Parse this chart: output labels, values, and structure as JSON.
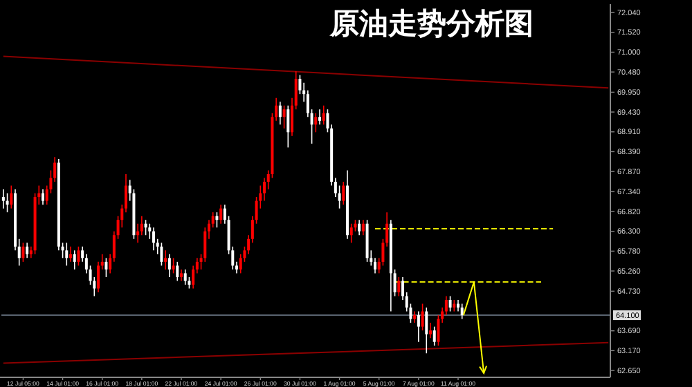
{
  "chart_data": {
    "type": "candlestick",
    "title": "原油走势分析图",
    "categories": [
      null,
      null,
      null,
      null,
      null,
      "12 Jul 05:00",
      null,
      null,
      null,
      null,
      null,
      null,
      null,
      null,
      null,
      "14 Jul 01:00",
      null,
      null,
      null,
      null,
      null,
      null,
      null,
      null,
      null,
      "16 Jul 01:00",
      null,
      null,
      null,
      null,
      null,
      null,
      null,
      null,
      null,
      "18 Jul 01:00",
      null,
      null,
      null,
      null,
      null,
      null,
      null,
      null,
      null,
      "22 Jul 01:00",
      null,
      null,
      null,
      null,
      null,
      null,
      null,
      null,
      null,
      "24 Jul 01:00",
      null,
      null,
      null,
      null,
      null,
      null,
      null,
      null,
      null,
      "26 Jul 01:00",
      null,
      null,
      null,
      null,
      null,
      null,
      null,
      null,
      null,
      "30 Jul 01:00",
      null,
      null,
      null,
      null,
      null,
      null,
      null,
      null,
      null,
      "1 Aug 01:00",
      null,
      null,
      null,
      null,
      null,
      null,
      null,
      null,
      null,
      "5 Aug 01:00",
      null,
      null,
      null,
      null,
      null,
      null,
      null,
      null,
      null,
      "7 Aug 01:00",
      null,
      null,
      null,
      null,
      null,
      null,
      null,
      null,
      null,
      "11 Aug 01:00",
      null,
      null,
      null,
      null,
      null,
      null,
      null,
      null,
      null,
      null,
      null,
      null,
      null,
      null,
      null,
      null,
      null,
      null,
      null,
      null,
      null,
      null,
      null,
      null,
      null,
      null,
      null,
      null,
      null,
      null,
      null,
      null,
      null,
      null,
      null,
      null,
      null,
      null
    ],
    "ohlc": [
      [
        67.2,
        67.4,
        66.9,
        67.1
      ],
      [
        67.1,
        67.3,
        66.8,
        67.0
      ],
      [
        67.0,
        67.5,
        66.9,
        67.3
      ],
      [
        67.3,
        67.4,
        65.8,
        65.9
      ],
      [
        65.9,
        66.1,
        65.4,
        65.6
      ],
      [
        65.6,
        66.0,
        65.5,
        65.9
      ],
      [
        65.9,
        66.0,
        65.6,
        65.7
      ],
      [
        65.7,
        65.9,
        65.6,
        65.8
      ],
      [
        65.8,
        67.3,
        65.7,
        67.2
      ],
      [
        67.2,
        67.5,
        67.0,
        67.3
      ],
      [
        67.3,
        67.4,
        67.0,
        67.1
      ],
      [
        67.1,
        67.5,
        67.0,
        67.4
      ],
      [
        67.4,
        67.9,
        67.3,
        67.7
      ],
      [
        67.7,
        68.25,
        67.6,
        68.1
      ],
      [
        68.1,
        68.2,
        65.8,
        65.9
      ],
      [
        65.9,
        66.0,
        65.6,
        65.8
      ],
      [
        65.8,
        66.0,
        65.4,
        65.6
      ],
      [
        65.6,
        65.9,
        65.5,
        65.7
      ],
      [
        65.7,
        65.8,
        65.3,
        65.5
      ],
      [
        65.5,
        65.9,
        65.4,
        65.8
      ],
      [
        65.8,
        65.9,
        65.5,
        65.6
      ],
      [
        65.6,
        65.7,
        65.2,
        65.3
      ],
      [
        65.3,
        65.4,
        64.9,
        65.0
      ],
      [
        65.0,
        65.1,
        64.6,
        64.8
      ],
      [
        64.8,
        65.5,
        64.7,
        65.4
      ],
      [
        65.4,
        65.7,
        65.3,
        65.5
      ],
      [
        65.5,
        65.6,
        65.1,
        65.3
      ],
      [
        65.3,
        65.7,
        65.2,
        65.6
      ],
      [
        65.6,
        66.3,
        65.5,
        66.2
      ],
      [
        66.2,
        66.7,
        66.1,
        66.6
      ],
      [
        66.6,
        67.0,
        66.4,
        66.9
      ],
      [
        66.9,
        67.8,
        66.8,
        67.5
      ],
      [
        67.5,
        67.65,
        67.1,
        67.3
      ],
      [
        67.3,
        67.4,
        66.1,
        66.2
      ],
      [
        66.2,
        66.5,
        66.0,
        66.3
      ],
      [
        66.3,
        66.7,
        66.2,
        66.5
      ],
      [
        66.5,
        66.6,
        66.2,
        66.4
      ],
      [
        66.4,
        66.5,
        66.1,
        66.3
      ],
      [
        66.3,
        66.4,
        65.8,
        66.0
      ],
      [
        66.0,
        66.1,
        65.7,
        65.9
      ],
      [
        65.9,
        66.0,
        65.4,
        65.5
      ],
      [
        65.5,
        65.8,
        65.3,
        65.6
      ],
      [
        65.6,
        65.7,
        65.1,
        65.3
      ],
      [
        65.3,
        65.6,
        65.2,
        65.4
      ],
      [
        65.4,
        65.5,
        65.0,
        65.1
      ],
      [
        65.1,
        65.3,
        65.0,
        65.2
      ],
      [
        65.2,
        65.3,
        64.9,
        65.0
      ],
      [
        65.0,
        65.1,
        64.8,
        64.9
      ],
      [
        64.9,
        65.4,
        64.8,
        65.3
      ],
      [
        65.3,
        65.6,
        65.2,
        65.5
      ],
      [
        65.5,
        65.7,
        65.3,
        65.6
      ],
      [
        65.6,
        66.4,
        65.5,
        66.3
      ],
      [
        66.3,
        66.6,
        66.1,
        66.5
      ],
      [
        66.5,
        66.8,
        66.4,
        66.7
      ],
      [
        66.7,
        66.8,
        66.4,
        66.6
      ],
      [
        66.6,
        67.0,
        66.5,
        66.9
      ],
      [
        66.9,
        67.0,
        66.5,
        66.6
      ],
      [
        66.6,
        66.7,
        65.7,
        65.8
      ],
      [
        65.8,
        65.9,
        65.3,
        65.4
      ],
      [
        65.4,
        65.5,
        65.2,
        65.3
      ],
      [
        65.3,
        65.7,
        65.2,
        65.6
      ],
      [
        65.6,
        65.9,
        65.5,
        65.8
      ],
      [
        65.8,
        66.2,
        65.7,
        66.1
      ],
      [
        66.1,
        66.7,
        66.0,
        66.6
      ],
      [
        66.6,
        67.2,
        66.5,
        67.1
      ],
      [
        67.1,
        67.5,
        66.9,
        67.3
      ],
      [
        67.3,
        67.7,
        67.1,
        67.6
      ],
      [
        67.6,
        67.9,
        67.4,
        67.8
      ],
      [
        67.8,
        69.4,
        67.7,
        69.3
      ],
      [
        69.3,
        69.8,
        69.2,
        69.6
      ],
      [
        69.6,
        69.7,
        69.1,
        69.3
      ],
      [
        69.3,
        69.6,
        69.0,
        69.5
      ],
      [
        69.5,
        69.6,
        68.5,
        68.9
      ],
      [
        68.9,
        69.8,
        68.8,
        69.6
      ],
      [
        69.6,
        70.5,
        69.5,
        70.3
      ],
      [
        70.3,
        70.4,
        69.9,
        70.0
      ],
      [
        70.0,
        70.2,
        69.7,
        69.9
      ],
      [
        69.9,
        70.0,
        69.3,
        69.4
      ],
      [
        69.4,
        69.5,
        68.6,
        69.1
      ],
      [
        69.1,
        69.4,
        68.9,
        69.3
      ],
      [
        69.3,
        69.5,
        69.1,
        69.2
      ],
      [
        69.2,
        69.6,
        69.1,
        69.4
      ],
      [
        69.4,
        69.5,
        68.9,
        69.0
      ],
      [
        69.0,
        69.1,
        67.5,
        67.6
      ],
      [
        67.6,
        67.7,
        67.2,
        67.3
      ],
      [
        67.3,
        67.5,
        66.9,
        67.1
      ],
      [
        67.1,
        67.6,
        67.0,
        67.5
      ],
      [
        67.5,
        67.9,
        66.1,
        66.2
      ],
      [
        66.2,
        66.5,
        66.0,
        66.4
      ],
      [
        66.4,
        66.6,
        66.3,
        66.5
      ],
      [
        66.5,
        66.6,
        66.2,
        66.3
      ],
      [
        66.3,
        66.6,
        66.2,
        66.5
      ],
      [
        66.5,
        66.6,
        65.5,
        65.6
      ],
      [
        65.6,
        65.8,
        65.4,
        65.5
      ],
      [
        65.5,
        65.6,
        65.2,
        65.3
      ],
      [
        65.3,
        65.6,
        65.2,
        65.5
      ],
      [
        65.5,
        66.1,
        65.4,
        66.0
      ],
      [
        66.0,
        66.8,
        65.9,
        66.5
      ],
      [
        66.5,
        66.6,
        64.2,
        65.2
      ],
      [
        65.2,
        65.3,
        64.6,
        64.7
      ],
      [
        64.7,
        65.1,
        64.6,
        65.0
      ],
      [
        65.0,
        65.1,
        64.5,
        64.6
      ],
      [
        64.6,
        64.7,
        64.2,
        64.3
      ],
      [
        64.3,
        64.4,
        63.9,
        64.0
      ],
      [
        64.0,
        64.2,
        63.9,
        64.1
      ],
      [
        64.1,
        64.2,
        63.4,
        63.8
      ],
      [
        63.8,
        64.4,
        63.7,
        64.2
      ],
      [
        64.2,
        64.3,
        63.1,
        63.6
      ],
      [
        63.6,
        63.9,
        63.5,
        63.7
      ],
      [
        63.7,
        63.8,
        63.3,
        63.4
      ],
      [
        63.4,
        64.1,
        63.3,
        64.0
      ],
      [
        64.0,
        64.3,
        63.9,
        64.2
      ],
      [
        64.2,
        64.6,
        64.1,
        64.5
      ],
      [
        64.5,
        64.6,
        64.2,
        64.3
      ],
      [
        64.3,
        64.5,
        64.2,
        64.4
      ],
      [
        64.4,
        64.5,
        64.2,
        64.3
      ],
      [
        64.3,
        64.4,
        64.0,
        64.1
      ],
      null,
      null,
      null,
      null,
      null,
      null,
      null,
      null,
      null,
      null,
      null,
      null,
      null,
      null,
      null,
      null,
      null,
      null,
      null,
      null,
      null,
      null,
      null,
      null,
      null,
      null,
      null,
      null,
      null,
      null,
      null,
      null,
      null,
      null,
      null,
      null,
      null
    ],
    "colors": [
      "#ffffff",
      "#ffffff",
      "#ff0000",
      "#ffffff",
      "#ffffff",
      "#ff0000",
      "#ffffff",
      "#ff0000",
      "#ff0000",
      "#ff0000",
      "#ffffff",
      "#ff0000",
      "#ff0000",
      "#ff0000",
      "#ffffff",
      "#ffffff",
      "#ffffff",
      "#ff0000",
      "#ffffff",
      "#ff0000",
      "#ffffff",
      "#ffffff",
      "#ffffff",
      "#ffffff",
      "#ff0000",
      "#ff0000",
      "#ffffff",
      "#ff0000",
      "#ff0000",
      "#ff0000",
      "#ff0000",
      "#ff0000",
      "#ffffff",
      "#ffffff",
      "#ff0000",
      "#ff0000",
      "#ffffff",
      "#ffffff",
      "#ffffff",
      "#ffffff",
      "#ffffff",
      "#ff0000",
      "#ffffff",
      "#ff0000",
      "#ffffff",
      "#ff0000",
      "#ffffff",
      "#ffffff",
      "#ff0000",
      "#ff0000",
      "#ff0000",
      "#ff0000",
      "#ff0000",
      "#ff0000",
      "#ffffff",
      "#ff0000",
      "#ffffff",
      "#ffffff",
      "#ffffff",
      "#ffffff",
      "#ff0000",
      "#ff0000",
      "#ff0000",
      "#ff0000",
      "#ff0000",
      "#ff0000",
      "#ff0000",
      "#ff0000",
      "#ff0000",
      "#ff0000",
      "#ffffff",
      "#ff0000",
      "#ffffff",
      "#ff0000",
      "#ff0000",
      "#ffffff",
      "#ffffff",
      "#ffffff",
      "#ffffff",
      "#ff0000",
      "#ffffff",
      "#ff0000",
      "#ffffff",
      "#ffffff",
      "#ffffff",
      "#ffffff",
      "#ff0000",
      "#ffffff",
      "#ff0000",
      "#ff0000",
      "#ffffff",
      "#ff0000",
      "#ffffff",
      "#ffffff",
      "#ffffff",
      "#ff0000",
      "#ff0000",
      "#ff0000",
      "#ffffff",
      "#ffffff",
      "#ff0000",
      "#ffffff",
      "#ffffff",
      "#ffffff",
      "#ff0000",
      "#ffffff",
      "#ff0000",
      "#ffffff",
      "#ff0000",
      "#ffffff",
      "#ff0000",
      "#ff0000",
      "#ff0000",
      "#ffffff",
      "#ff0000",
      "#ffffff",
      "#ffffff",
      null,
      null,
      null,
      null,
      null,
      null,
      null,
      null,
      null,
      null,
      null,
      null,
      null,
      null,
      null,
      null,
      null,
      null,
      null,
      null,
      null,
      null,
      null,
      null,
      null,
      null,
      null,
      null,
      null,
      null,
      null,
      null,
      null,
      null,
      null,
      null,
      null
    ],
    "series": [
      {
        "type": "line",
        "color": "#8b0000",
        "values": [
          70.89,
          null,
          null,
          null,
          null,
          null,
          null,
          null,
          null,
          null,
          null,
          null,
          null,
          null,
          null,
          null,
          null,
          null,
          null,
          null,
          null,
          null,
          null,
          null,
          null,
          null,
          null,
          null,
          null,
          null,
          null,
          null,
          null,
          null,
          null,
          null,
          null,
          null,
          null,
          null,
          null,
          null,
          null,
          null,
          null,
          null,
          null,
          null,
          null,
          null,
          null,
          null,
          null,
          null,
          null,
          null,
          null,
          null,
          null,
          null,
          null,
          null,
          null,
          null,
          null,
          null,
          null,
          null,
          null,
          null,
          null,
          null,
          null,
          null,
          null,
          null,
          null,
          null,
          null,
          null,
          null,
          null,
          null,
          null,
          null,
          null,
          null,
          null,
          null,
          null,
          null,
          null,
          null,
          null,
          null,
          null,
          null,
          null,
          null,
          null,
          null,
          null,
          null,
          null,
          null,
          null,
          null,
          null,
          null,
          null,
          null,
          null,
          null,
          null,
          null,
          null,
          null,
          null,
          null,
          null,
          null,
          null,
          null,
          null,
          null,
          null,
          null,
          null,
          null,
          null,
          null,
          null,
          null,
          null,
          null,
          null,
          null,
          null,
          null,
          null,
          null,
          null,
          null,
          null,
          null,
          null,
          null,
          null,
          null,
          null,
          null,
          null,
          null,
          70.06
        ]
      },
      {
        "type": "line",
        "color": "#8b0000",
        "values": [
          62.84,
          null,
          null,
          null,
          null,
          null,
          null,
          null,
          null,
          null,
          null,
          null,
          null,
          null,
          null,
          null,
          null,
          null,
          null,
          null,
          null,
          null,
          null,
          null,
          null,
          null,
          null,
          null,
          null,
          null,
          null,
          null,
          null,
          null,
          null,
          null,
          null,
          null,
          null,
          null,
          null,
          null,
          null,
          null,
          null,
          null,
          null,
          null,
          null,
          null,
          null,
          null,
          null,
          null,
          null,
          null,
          null,
          null,
          null,
          null,
          null,
          null,
          null,
          null,
          null,
          null,
          null,
          null,
          null,
          null,
          null,
          null,
          null,
          null,
          null,
          null,
          null,
          null,
          null,
          null,
          null,
          null,
          null,
          null,
          null,
          null,
          null,
          null,
          null,
          null,
          null,
          null,
          null,
          null,
          null,
          null,
          null,
          null,
          null,
          null,
          null,
          null,
          null,
          null,
          null,
          null,
          null,
          null,
          null,
          null,
          null,
          null,
          null,
          null,
          null,
          null,
          null,
          null,
          null,
          null,
          null,
          null,
          null,
          null,
          null,
          null,
          null,
          null,
          null,
          null,
          null,
          null,
          null,
          null,
          null,
          null,
          null,
          null,
          null,
          null,
          null,
          null,
          null,
          null,
          null,
          null,
          null,
          null,
          null,
          null,
          null,
          null,
          null,
          63.38
        ]
      },
      {
        "type": "line",
        "color": "#e6e600",
        "line_style": "dashed",
        "values": [
          null,
          null,
          null,
          null,
          null,
          null,
          null,
          null,
          null,
          null,
          null,
          null,
          null,
          null,
          null,
          null,
          null,
          null,
          null,
          null,
          null,
          null,
          null,
          null,
          null,
          null,
          null,
          null,
          null,
          null,
          null,
          null,
          null,
          null,
          null,
          null,
          null,
          null,
          null,
          null,
          null,
          null,
          null,
          null,
          null,
          null,
          null,
          null,
          null,
          null,
          null,
          null,
          null,
          null,
          null,
          null,
          null,
          null,
          null,
          null,
          null,
          null,
          null,
          null,
          null,
          null,
          null,
          null,
          null,
          null,
          null,
          null,
          null,
          null,
          null,
          null,
          null,
          null,
          null,
          null,
          null,
          null,
          null,
          null,
          null,
          null,
          null,
          null,
          null,
          null,
          null,
          null,
          null,
          null,
          66.37,
          null,
          null,
          null,
          null,
          null,
          null,
          null,
          null,
          null,
          null,
          null,
          null,
          null,
          null,
          null,
          null,
          null,
          null,
          null,
          null,
          null,
          null,
          null,
          null,
          null,
          null,
          null,
          null,
          null,
          null,
          null,
          null,
          null,
          null,
          null,
          null,
          null,
          null,
          null,
          null,
          null,
          null,
          null,
          null,
          66.37,
          null,
          null,
          null,
          null,
          null,
          null,
          null,
          null,
          null,
          null,
          null,
          null,
          null,
          null
        ]
      },
      {
        "type": "line",
        "color": "#e6e600",
        "line_style": "dashed",
        "values": [
          null,
          null,
          null,
          null,
          null,
          null,
          null,
          null,
          null,
          null,
          null,
          null,
          null,
          null,
          null,
          null,
          null,
          null,
          null,
          null,
          null,
          null,
          null,
          null,
          null,
          null,
          null,
          null,
          null,
          null,
          null,
          null,
          null,
          null,
          null,
          null,
          null,
          null,
          null,
          null,
          null,
          null,
          null,
          null,
          null,
          null,
          null,
          null,
          null,
          null,
          null,
          null,
          null,
          null,
          null,
          null,
          null,
          null,
          null,
          null,
          null,
          null,
          null,
          null,
          null,
          null,
          null,
          null,
          null,
          null,
          null,
          null,
          null,
          null,
          null,
          null,
          null,
          null,
          null,
          null,
          null,
          null,
          null,
          null,
          null,
          null,
          null,
          null,
          null,
          null,
          null,
          null,
          null,
          null,
          null,
          null,
          null,
          null,
          null,
          64.97,
          null,
          null,
          null,
          null,
          null,
          null,
          null,
          null,
          null,
          null,
          null,
          null,
          null,
          null,
          null,
          null,
          null,
          null,
          null,
          null,
          null,
          null,
          null,
          null,
          null,
          null,
          null,
          null,
          null,
          null,
          null,
          null,
          null,
          null,
          null,
          null,
          64.97,
          null,
          null,
          null,
          null,
          null,
          null,
          null,
          null,
          null,
          null,
          null,
          null,
          null,
          null,
          null,
          null,
          null
        ]
      }
    ],
    "ylim": [
      62.47,
      72.26
    ],
    "yticks": [
      {
        "value": 72.04,
        "label": "72.040"
      },
      {
        "value": 71.52,
        "label": "71.520"
      },
      {
        "value": 71.0,
        "label": "71.000"
      },
      {
        "value": 70.48,
        "label": "70.480"
      },
      {
        "value": 69.95,
        "label": "69.950"
      },
      {
        "value": 69.43,
        "label": "69.430"
      },
      {
        "value": 68.91,
        "label": "68.910"
      },
      {
        "value": 68.39,
        "label": "68.390"
      },
      {
        "value": 67.87,
        "label": "67.870"
      },
      {
        "value": 67.34,
        "label": "67.340"
      },
      {
        "value": 66.82,
        "label": "66.820"
      },
      {
        "value": 66.3,
        "label": "66.300"
      },
      {
        "value": 65.78,
        "label": "65.780"
      },
      {
        "value": 65.26,
        "label": "65.260"
      },
      {
        "value": 64.73,
        "label": "64.730"
      },
      {
        "value": 63.69,
        "label": "63.690"
      },
      {
        "value": 63.17,
        "label": "63.170"
      },
      {
        "value": 62.65,
        "label": "62.650"
      }
    ],
    "ref_lines": [
      {
        "axis": "y",
        "value": 64.1,
        "label": "64.100",
        "color": "#5a6470"
      }
    ],
    "grid": false
  }
}
